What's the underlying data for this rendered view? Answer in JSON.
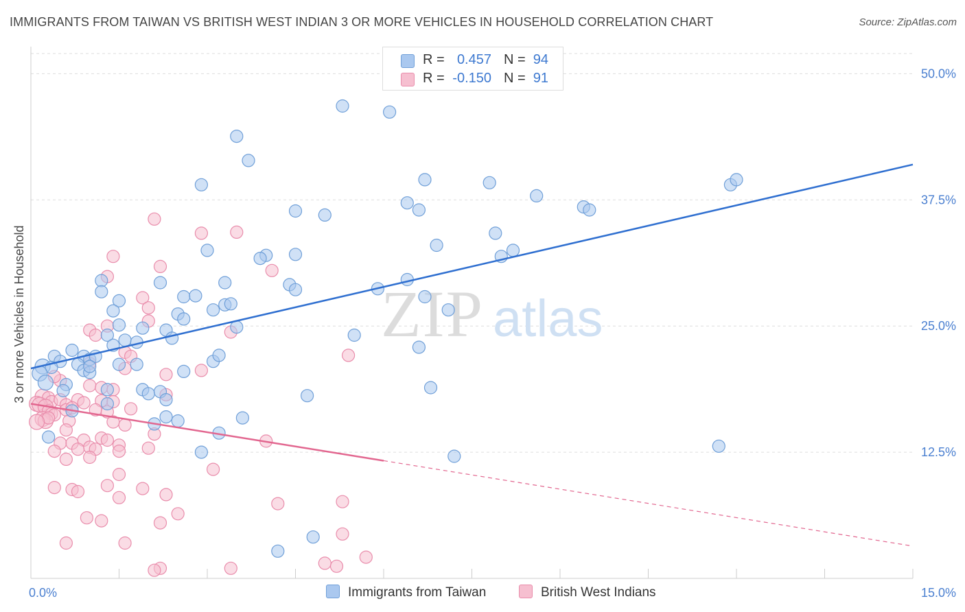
{
  "header": {
    "title": "IMMIGRANTS FROM TAIWAN VS BRITISH WEST INDIAN 3 OR MORE VEHICLES IN HOUSEHOLD CORRELATION CHART",
    "source": "Source: ZipAtlas.com"
  },
  "watermark": {
    "zip": "ZIP",
    "atlas": "atlas"
  },
  "stats_legend": {
    "r_label": "R =",
    "n_label": "N =",
    "series": [
      {
        "r": "0.457",
        "n": "94"
      },
      {
        "r": "-0.150",
        "n": "91"
      }
    ]
  },
  "colors": {
    "blue_fill": "#aac8ef",
    "blue_stroke": "#6f9fd8",
    "blue_line": "#2f6fd0",
    "pink_fill": "#f6bfd0",
    "pink_stroke": "#e98cab",
    "pink_line": "#e2668f",
    "grid": "#dddddd",
    "tick_label": "#4a7fd0"
  },
  "chart_data": {
    "type": "scatter",
    "title": "IMMIGRANTS FROM TAIWAN VS BRITISH WEST INDIAN 3 OR MORE VEHICLES IN HOUSEHOLD CORRELATION CHART",
    "xlabel": "",
    "ylabel": "3 or more Vehicles in Household",
    "xlim": [
      0,
      15
    ],
    "ylim": [
      0,
      52
    ],
    "x_tick_labels": [
      "0.0%",
      "15.0%"
    ],
    "y_ticks": [
      12.5,
      25.0,
      37.5,
      50.0
    ],
    "y_tick_labels": [
      "12.5%",
      "25.0%",
      "37.5%",
      "50.0%"
    ],
    "grid": true,
    "legend_position": "bottom",
    "series": [
      {
        "name": "Immigrants from Taiwan",
        "color": "#6f9fd8",
        "trend": {
          "x": [
            0,
            15
          ],
          "y": [
            20.8,
            41.0
          ],
          "dashed_from": null
        },
        "points": [
          [
            5.3,
            46.8
          ],
          [
            6.1,
            46.2
          ],
          [
            3.5,
            43.8
          ],
          [
            3.7,
            41.4
          ],
          [
            2.9,
            39.0
          ],
          [
            6.7,
            39.5
          ],
          [
            7.8,
            39.2
          ],
          [
            11.9,
            39.0
          ],
          [
            12.0,
            39.5
          ],
          [
            8.6,
            37.9
          ],
          [
            6.4,
            37.2
          ],
          [
            6.6,
            36.5
          ],
          [
            4.5,
            36.4
          ],
          [
            5.0,
            36.0
          ],
          [
            9.4,
            36.8
          ],
          [
            9.5,
            36.5
          ],
          [
            7.9,
            34.2
          ],
          [
            6.9,
            33.0
          ],
          [
            8.2,
            32.5
          ],
          [
            8.0,
            31.9
          ],
          [
            3.0,
            32.5
          ],
          [
            4.0,
            32.0
          ],
          [
            3.9,
            31.7
          ],
          [
            4.5,
            32.1
          ],
          [
            1.2,
            29.5
          ],
          [
            2.2,
            29.3
          ],
          [
            3.3,
            29.3
          ],
          [
            4.4,
            29.1
          ],
          [
            4.5,
            28.6
          ],
          [
            5.9,
            28.7
          ],
          [
            6.4,
            29.6
          ],
          [
            6.7,
            27.9
          ],
          [
            1.2,
            28.4
          ],
          [
            1.5,
            27.5
          ],
          [
            2.6,
            27.9
          ],
          [
            2.8,
            28.0
          ],
          [
            3.3,
            27.1
          ],
          [
            3.4,
            27.2
          ],
          [
            3.1,
            26.6
          ],
          [
            1.4,
            26.5
          ],
          [
            2.5,
            26.2
          ],
          [
            2.6,
            25.7
          ],
          [
            7.1,
            26.6
          ],
          [
            3.5,
            24.9
          ],
          [
            1.5,
            25.1
          ],
          [
            1.9,
            24.8
          ],
          [
            2.3,
            24.6
          ],
          [
            1.3,
            24.1
          ],
          [
            1.6,
            23.6
          ],
          [
            2.4,
            23.8
          ],
          [
            1.8,
            23.4
          ],
          [
            5.5,
            24.1
          ],
          [
            6.6,
            22.9
          ],
          [
            1.4,
            23.1
          ],
          [
            0.7,
            22.6
          ],
          [
            0.4,
            22.0
          ],
          [
            0.9,
            22.0
          ],
          [
            1.0,
            21.7
          ],
          [
            1.1,
            22.0
          ],
          [
            0.5,
            21.5
          ],
          [
            0.8,
            21.2
          ],
          [
            0.2,
            21.0
          ],
          [
            0.35,
            20.9
          ],
          [
            0.9,
            20.6
          ],
          [
            1.0,
            20.4
          ],
          [
            1.0,
            21.0
          ],
          [
            1.5,
            21.2
          ],
          [
            1.8,
            21.2
          ],
          [
            2.6,
            20.5
          ],
          [
            3.1,
            21.5
          ],
          [
            3.2,
            22.1
          ],
          [
            0.15,
            20.3
          ],
          [
            0.25,
            19.4
          ],
          [
            0.6,
            19.2
          ],
          [
            0.55,
            18.6
          ],
          [
            1.3,
            18.7
          ],
          [
            1.9,
            18.7
          ],
          [
            2.0,
            18.3
          ],
          [
            2.2,
            18.5
          ],
          [
            2.3,
            17.7
          ],
          [
            4.7,
            18.1
          ],
          [
            6.8,
            18.9
          ],
          [
            1.3,
            17.3
          ],
          [
            0.7,
            16.6
          ],
          [
            2.3,
            16.0
          ],
          [
            2.5,
            15.6
          ],
          [
            2.1,
            15.3
          ],
          [
            3.6,
            15.9
          ],
          [
            3.2,
            14.4
          ],
          [
            0.3,
            14.0
          ],
          [
            2.9,
            12.5
          ],
          [
            7.2,
            12.1
          ],
          [
            11.7,
            13.1
          ],
          [
            4.8,
            4.1
          ],
          [
            4.2,
            2.7
          ]
        ]
      },
      {
        "name": "British West Indians",
        "color": "#e98cab",
        "trend": {
          "x": [
            0,
            15
          ],
          "y": [
            17.3,
            3.2
          ],
          "dashed_from": 6.0
        },
        "points": [
          [
            2.1,
            35.6
          ],
          [
            2.9,
            34.2
          ],
          [
            3.5,
            34.3
          ],
          [
            1.4,
            31.9
          ],
          [
            2.2,
            30.9
          ],
          [
            4.1,
            30.5
          ],
          [
            1.3,
            29.9
          ],
          [
            1.9,
            27.8
          ],
          [
            2.0,
            26.8
          ],
          [
            2.0,
            25.5
          ],
          [
            1.3,
            25.0
          ],
          [
            1.0,
            24.6
          ],
          [
            1.1,
            24.1
          ],
          [
            3.4,
            24.4
          ],
          [
            1.6,
            22.4
          ],
          [
            1.7,
            22.0
          ],
          [
            5.4,
            22.1
          ],
          [
            1.0,
            21.3
          ],
          [
            1.6,
            20.8
          ],
          [
            2.3,
            20.2
          ],
          [
            2.9,
            20.6
          ],
          [
            0.5,
            19.6
          ],
          [
            0.4,
            20.0
          ],
          [
            1.0,
            19.1
          ],
          [
            1.2,
            18.9
          ],
          [
            1.4,
            18.7
          ],
          [
            2.3,
            18.2
          ],
          [
            0.2,
            18.0
          ],
          [
            0.3,
            17.9
          ],
          [
            0.35,
            17.5
          ],
          [
            0.5,
            17.7
          ],
          [
            0.6,
            17.2
          ],
          [
            0.8,
            17.7
          ],
          [
            0.9,
            17.4
          ],
          [
            1.2,
            17.6
          ],
          [
            1.4,
            17.5
          ],
          [
            0.1,
            17.3
          ],
          [
            0.15,
            17.2
          ],
          [
            0.25,
            17.0
          ],
          [
            0.3,
            16.6
          ],
          [
            0.35,
            16.3
          ],
          [
            0.4,
            16.2
          ],
          [
            0.6,
            16.7
          ],
          [
            0.7,
            16.9
          ],
          [
            1.1,
            16.7
          ],
          [
            1.3,
            16.5
          ],
          [
            1.7,
            16.8
          ],
          [
            0.2,
            15.8
          ],
          [
            0.25,
            15.6
          ],
          [
            0.3,
            15.9
          ],
          [
            0.65,
            15.6
          ],
          [
            1.4,
            15.5
          ],
          [
            1.6,
            15.2
          ],
          [
            0.1,
            15.5
          ],
          [
            0.6,
            14.7
          ],
          [
            0.9,
            13.7
          ],
          [
            1.2,
            13.9
          ],
          [
            1.3,
            13.7
          ],
          [
            2.1,
            14.3
          ],
          [
            0.5,
            13.4
          ],
          [
            0.7,
            13.4
          ],
          [
            1.0,
            13.0
          ],
          [
            1.5,
            13.2
          ],
          [
            0.4,
            12.6
          ],
          [
            0.8,
            12.8
          ],
          [
            1.1,
            12.8
          ],
          [
            2.0,
            12.9
          ],
          [
            0.6,
            11.8
          ],
          [
            1.0,
            12.0
          ],
          [
            1.5,
            12.6
          ],
          [
            3.1,
            10.8
          ],
          [
            4.0,
            13.6
          ],
          [
            1.5,
            10.3
          ],
          [
            0.4,
            9.0
          ],
          [
            0.7,
            8.8
          ],
          [
            0.8,
            8.6
          ],
          [
            1.3,
            9.2
          ],
          [
            1.9,
            8.9
          ],
          [
            1.5,
            8.0
          ],
          [
            2.3,
            8.3
          ],
          [
            4.2,
            7.4
          ],
          [
            5.3,
            7.6
          ],
          [
            0.95,
            6.0
          ],
          [
            1.2,
            5.7
          ],
          [
            2.2,
            5.5
          ],
          [
            2.5,
            6.4
          ],
          [
            0.6,
            3.5
          ],
          [
            1.6,
            3.5
          ],
          [
            2.2,
            1.0
          ],
          [
            2.1,
            0.8
          ],
          [
            5.7,
            2.1
          ],
          [
            3.4,
            1.0
          ],
          [
            5.0,
            1.5
          ],
          [
            5.2,
            1.2
          ],
          [
            5.3,
            4.4
          ]
        ]
      }
    ]
  },
  "bottom_legend": {
    "items": [
      {
        "label": "Immigrants from Taiwan"
      },
      {
        "label": "British West Indians"
      }
    ]
  }
}
